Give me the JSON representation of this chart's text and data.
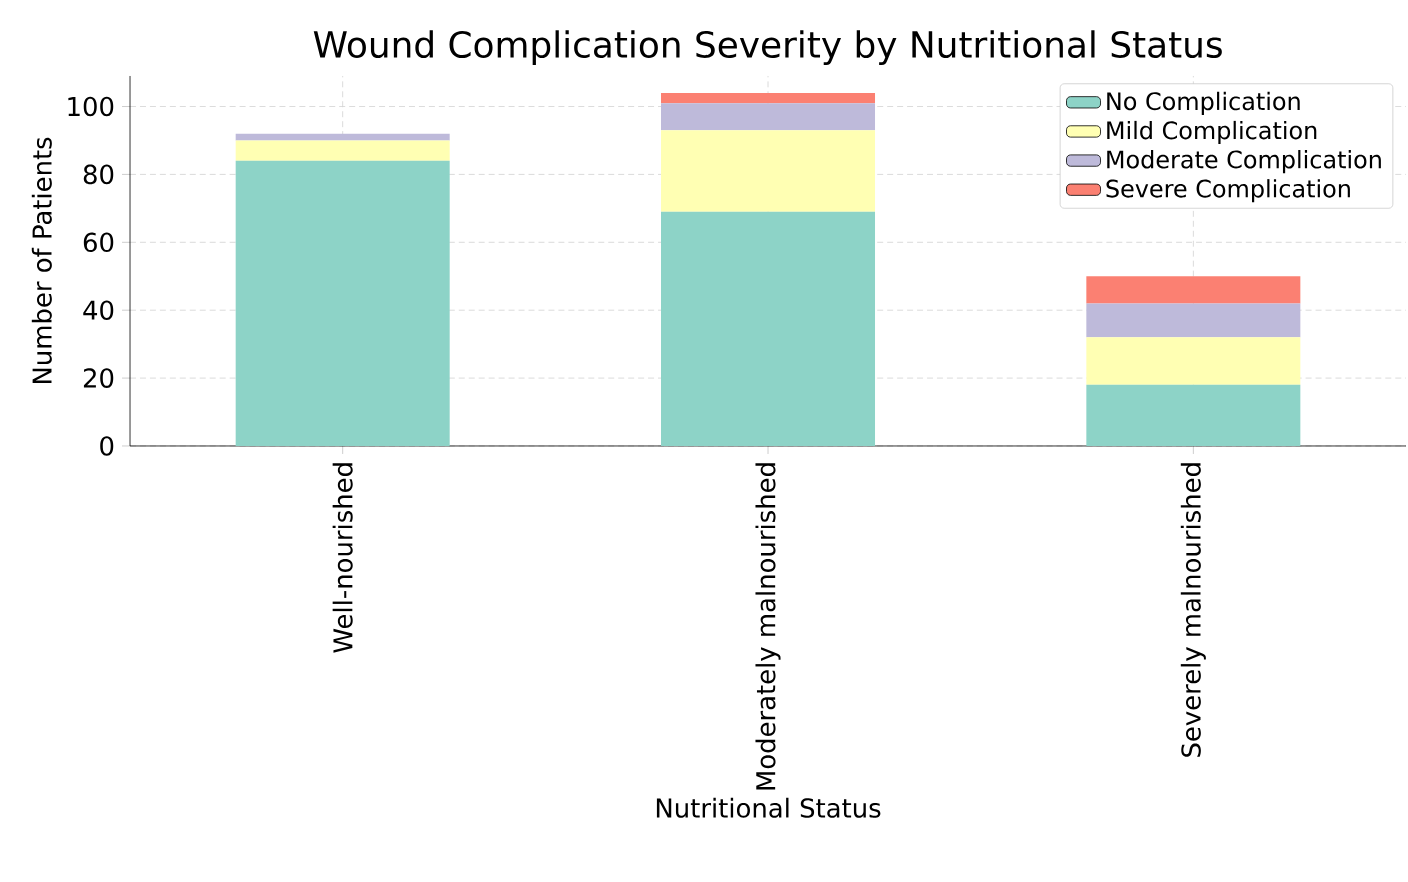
{
  "chart_data": {
    "type": "bar",
    "stacked": true,
    "title": "Wound Complication Severity by Nutritional Status",
    "xlabel": "Nutritional Status",
    "ylabel": "Number of Patients",
    "categories": [
      "Well-nourished",
      "Moderately malnourished",
      "Severely malnourished"
    ],
    "series": [
      {
        "name": "No Complication",
        "color": "#8dd3c7",
        "values": [
          84,
          69,
          18
        ]
      },
      {
        "name": "Mild Complication",
        "color": "#ffffb3",
        "values": [
          6,
          24,
          14
        ]
      },
      {
        "name": "Moderate Complication",
        "color": "#bebada",
        "values": [
          2,
          8,
          10
        ]
      },
      {
        "name": "Severe Complication",
        "color": "#fb8072",
        "values": [
          0,
          3,
          8
        ]
      }
    ],
    "ylim": [
      0,
      109
    ],
    "yticks": [
      0,
      20,
      40,
      60,
      80,
      100
    ],
    "grid": true,
    "legend": "top right"
  }
}
